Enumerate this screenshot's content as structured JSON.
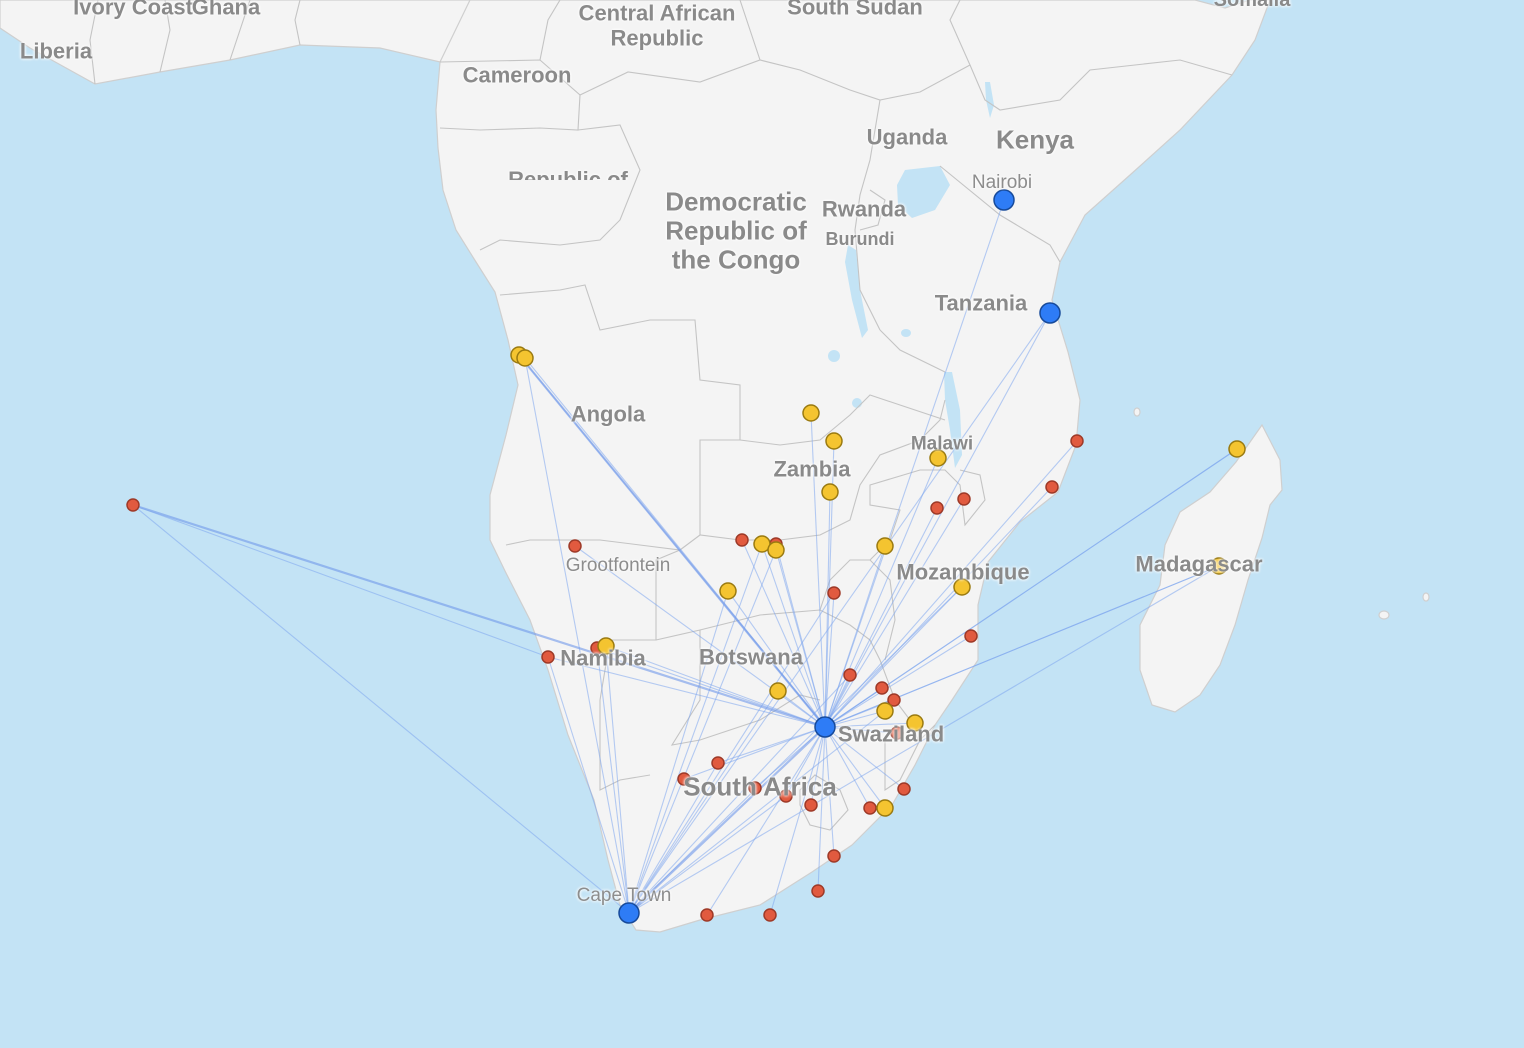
{
  "map": {
    "colors": {
      "water": "#c3e3f5",
      "land": "#f4f4f4",
      "route": "#7ea6ef",
      "hub": "#2e7cf6",
      "yellow_marker": "#f4c430",
      "red_marker": "#e15a3f"
    },
    "country_labels": [
      {
        "id": "liberia",
        "text": "Liberia"
      },
      {
        "id": "ivory-coast",
        "text": "Ivory Coast"
      },
      {
        "id": "ghana",
        "text": "Ghana"
      },
      {
        "id": "car",
        "text": "Central African\nRepublic"
      },
      {
        "id": "south-sudan",
        "text": "South Sudan"
      },
      {
        "id": "somalia",
        "text": "Somalia"
      },
      {
        "id": "cameroon",
        "text": "Cameroon"
      },
      {
        "id": "uganda",
        "text": "Uganda"
      },
      {
        "id": "kenya",
        "text": "Kenya"
      },
      {
        "id": "republic-of",
        "text": "Republic of"
      },
      {
        "id": "drc",
        "text": "Democratic\nRepublic of\nthe Congo"
      },
      {
        "id": "rwanda",
        "text": "Rwanda"
      },
      {
        "id": "burundi",
        "text": "Burundi"
      },
      {
        "id": "tanzania",
        "text": "Tanzania"
      },
      {
        "id": "angola",
        "text": "Angola"
      },
      {
        "id": "malawi",
        "text": "Malawi"
      },
      {
        "id": "zambia",
        "text": "Zambia"
      },
      {
        "id": "mozambique",
        "text": "Mozambique"
      },
      {
        "id": "madagascar",
        "text": "Madagascar"
      },
      {
        "id": "namibia",
        "text": "Namibia"
      },
      {
        "id": "botswana",
        "text": "Botswana"
      },
      {
        "id": "swaziland",
        "text": "Swaziland"
      },
      {
        "id": "south-africa",
        "text": "South Africa"
      }
    ],
    "city_labels": [
      {
        "id": "nairobi",
        "text": "Nairobi"
      },
      {
        "id": "grootfontein",
        "text": "Grootfontein"
      },
      {
        "id": "cape-town",
        "text": "Cape Town"
      }
    ],
    "hub_icon": "blue-circle-marker",
    "yellow_icon": "yellow-circle-marker",
    "red_icon": "red-circle-marker"
  }
}
